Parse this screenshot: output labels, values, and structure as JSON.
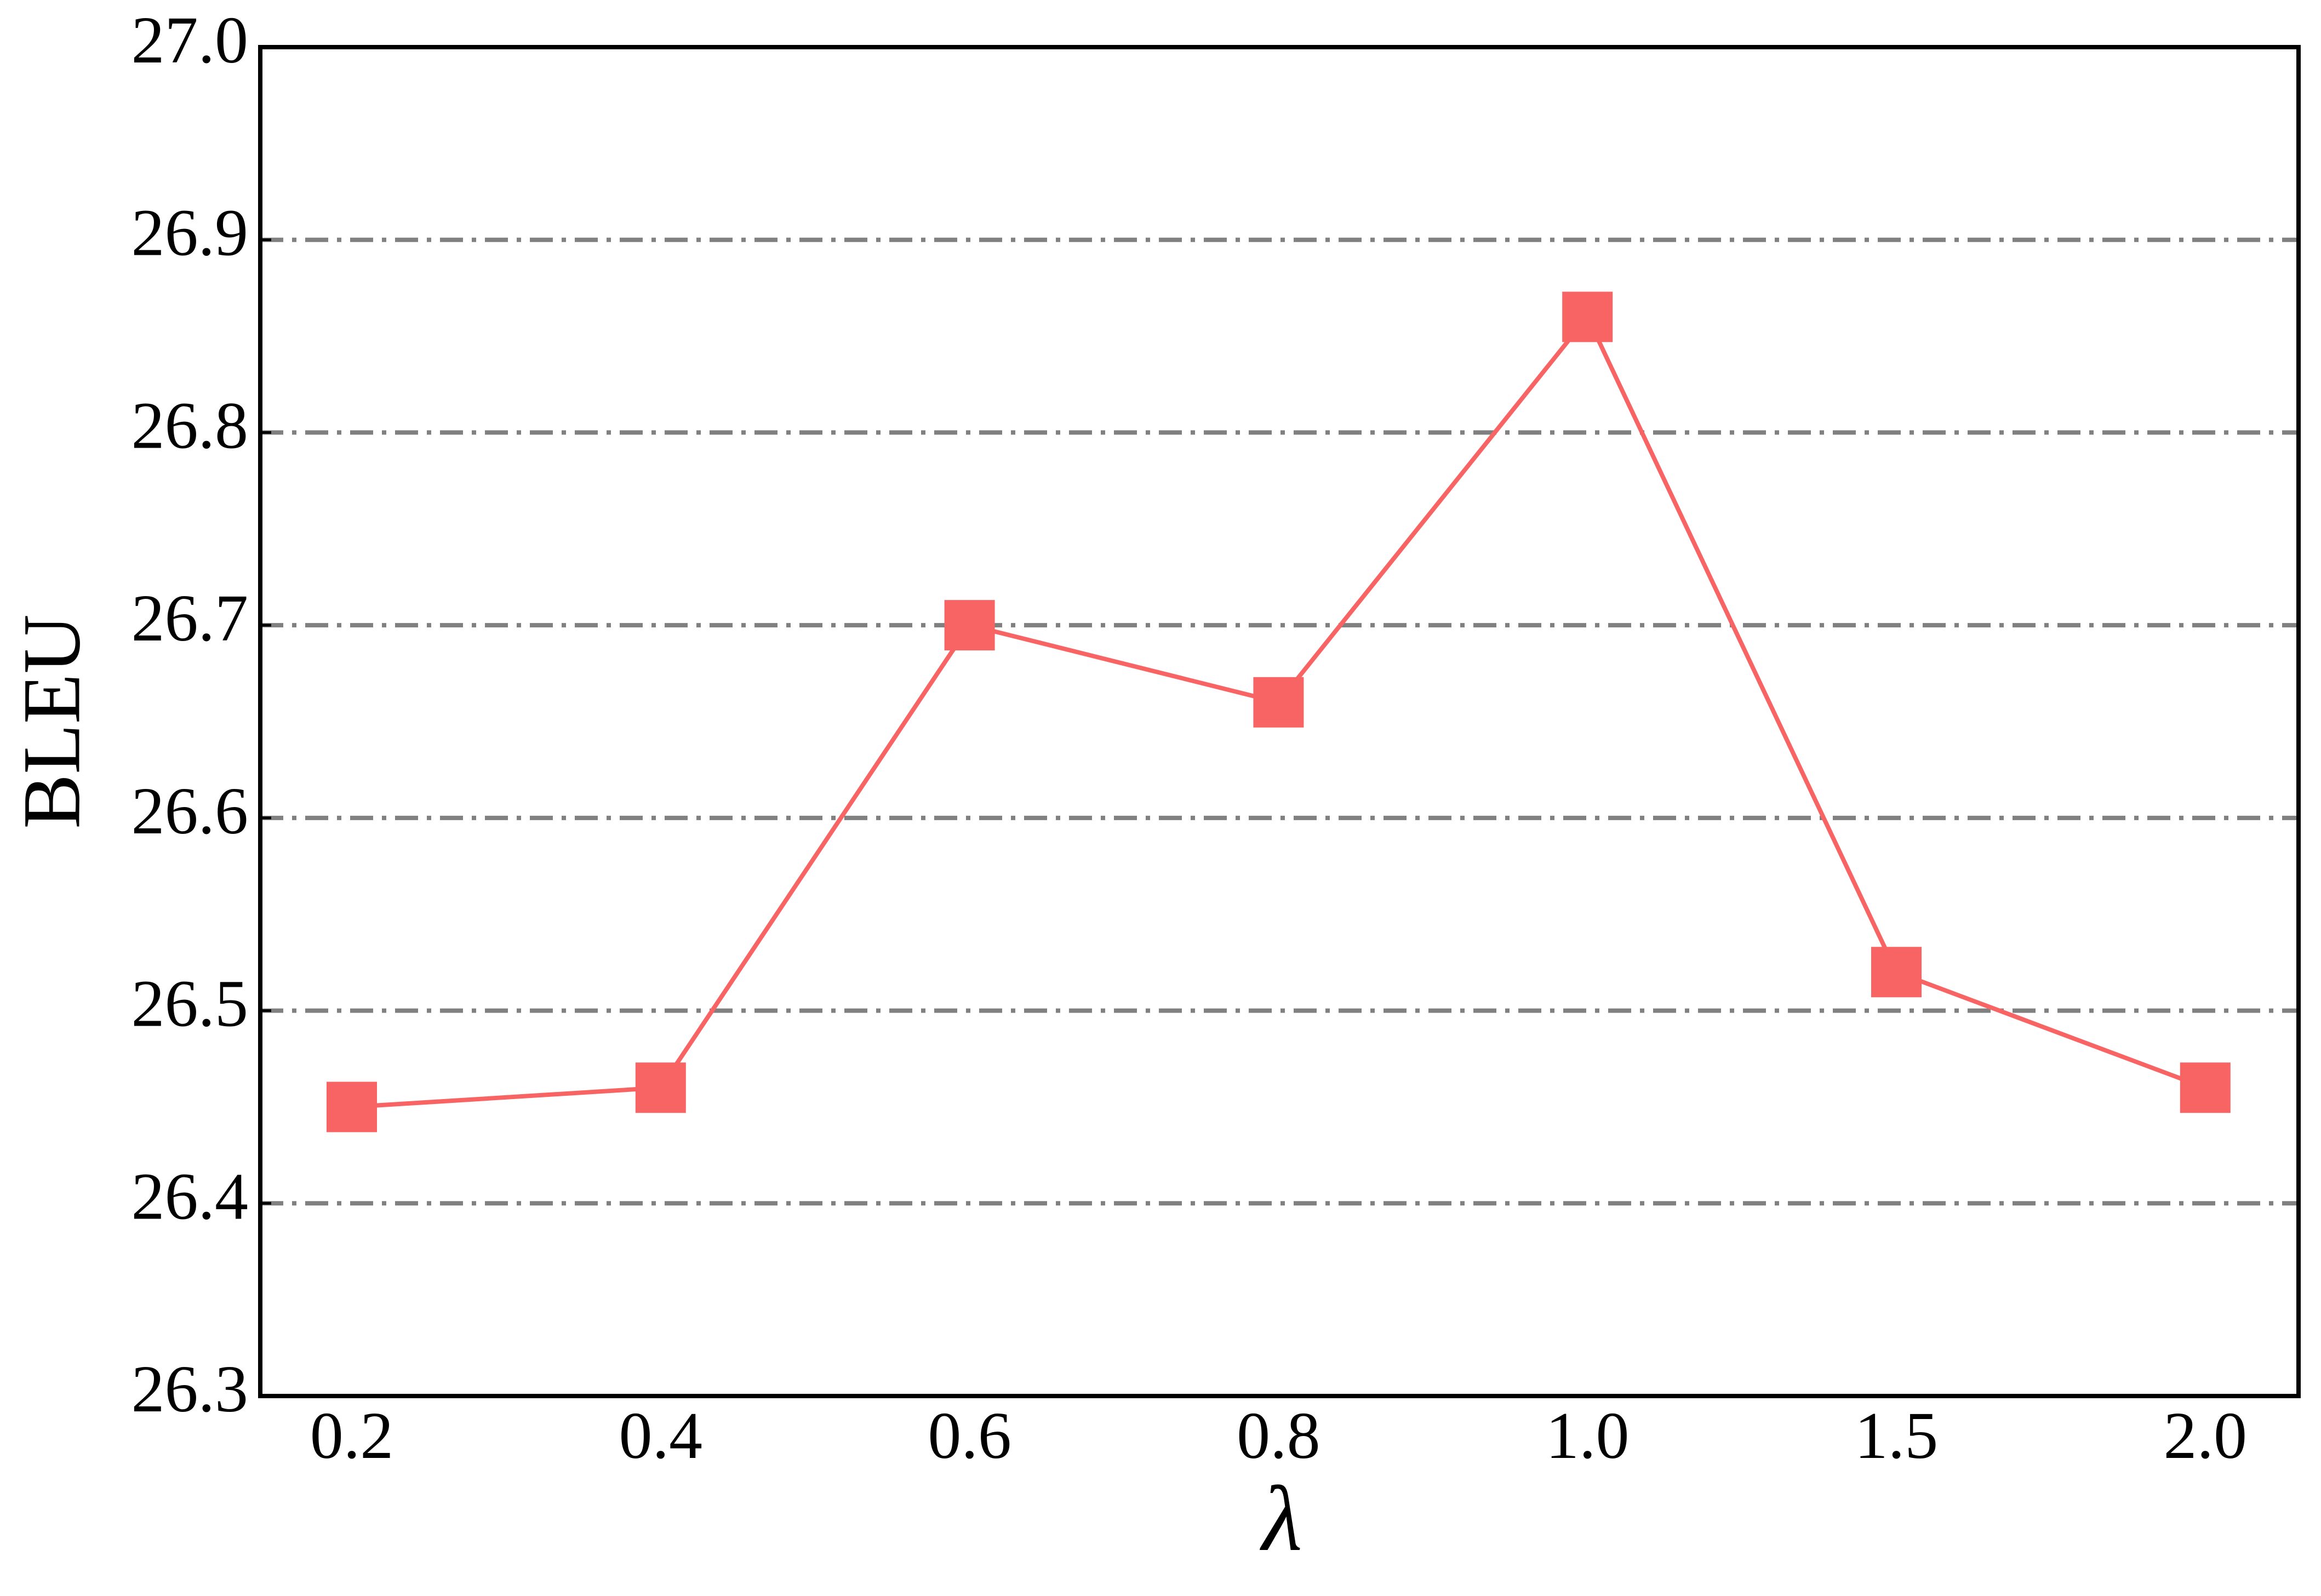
{
  "chart_data": {
    "type": "line",
    "x_label": "λ",
    "y_label": "BLEU",
    "categories": [
      "0.2",
      "0.4",
      "0.6",
      "0.8",
      "1.0",
      "1.5",
      "2.0"
    ],
    "series": [
      {
        "color": "#f86464",
        "marker": "square",
        "values": [
          26.45,
          26.46,
          26.7,
          26.66,
          26.86,
          26.52,
          26.46
        ]
      }
    ],
    "ylim": [
      26.3,
      27.0
    ],
    "yticks": [
      26.3,
      26.4,
      26.5,
      26.6,
      26.7,
      26.8,
      26.9,
      {
        "value": 27.0,
        "label": "27.0"
      }
    ],
    "grid": true
  }
}
